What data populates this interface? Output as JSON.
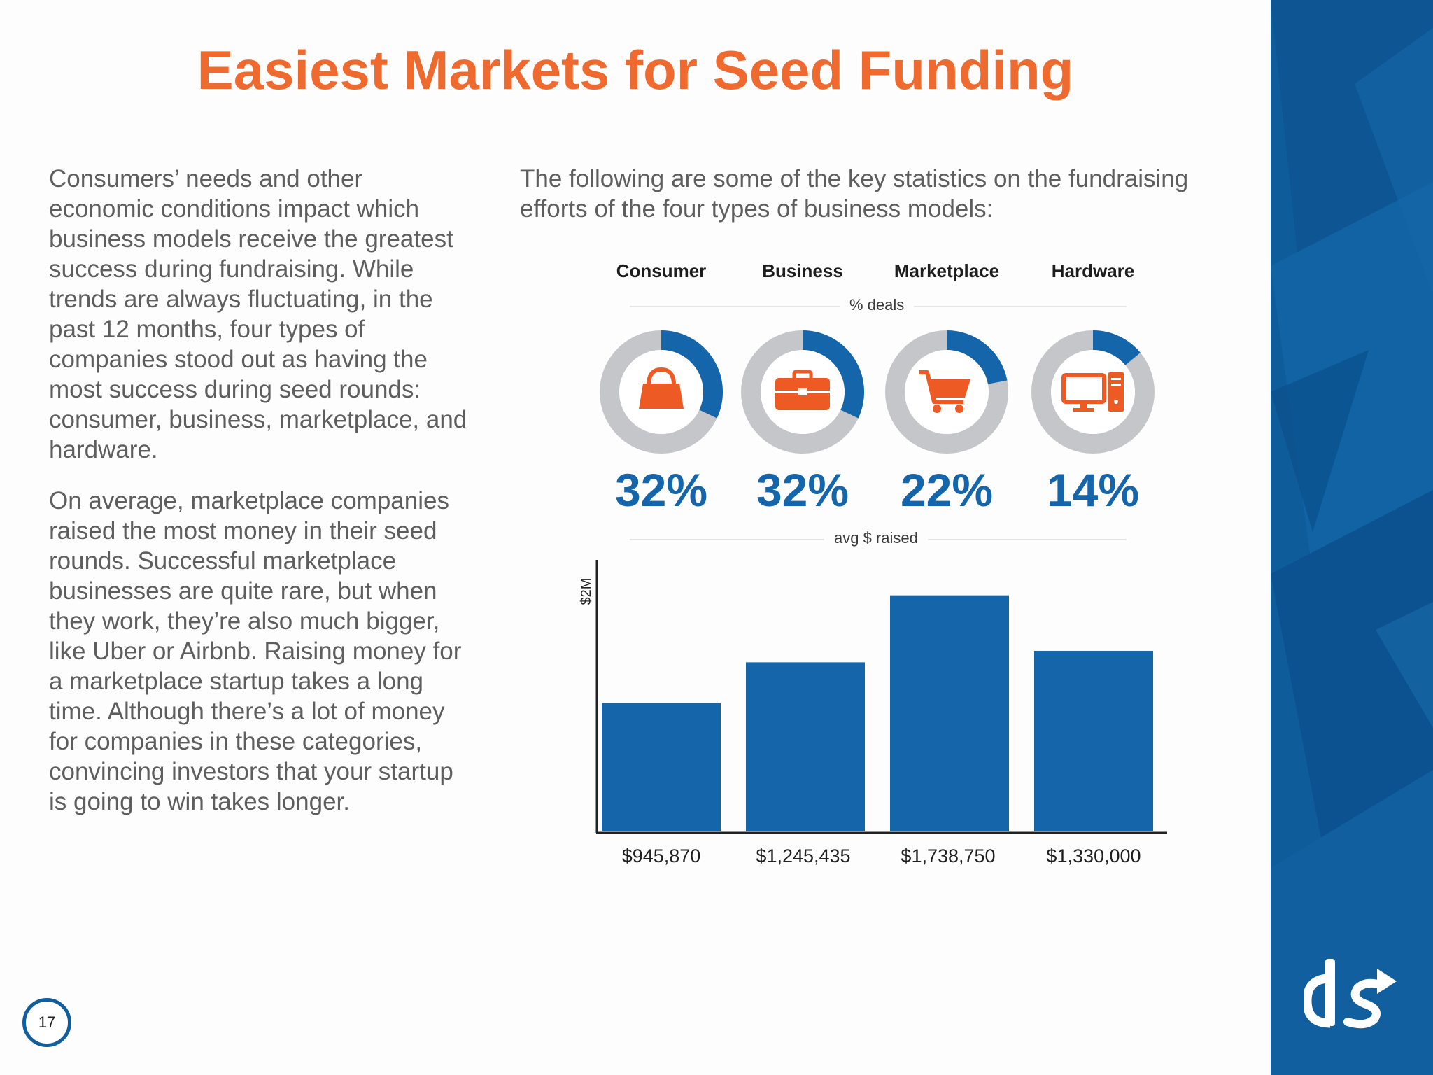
{
  "page": {
    "title": "Easiest Markets for Seed Funding",
    "page_number": "17"
  },
  "left_column": {
    "paragraph1": "Consumers’ needs and other economic conditions impact which business models receive the greatest success during fundraising. While trends are always fluctuating, in the past 12 months, four types of companies stood out as having the most success during seed rounds: consumer, business, marketplace, and hardware.",
    "paragraph2": "On average, marketplace companies raised the most money in their seed rounds. Successful marketplace businesses are quite rare, but when they work, they’re also much bigger, like Uber or Airbnb. Raising money for a marketplace startup takes a long time. Although there’s a lot of money for companies in these categories, convincing investors that your startup is going to win takes longer."
  },
  "intro": "The following are some of the key statistics on the fundraising efforts of the four types of business models:",
  "section_labels": {
    "deals": "% deals",
    "raised": "avg $ raised"
  },
  "categories": [
    {
      "name": "Consumer",
      "pct_label": "32%",
      "pct": 32,
      "icon": "shopping-bag-icon",
      "raised_label": "$945,870"
    },
    {
      "name": "Business",
      "pct_label": "32%",
      "pct": 32,
      "icon": "briefcase-icon",
      "raised_label": "$1,245,435"
    },
    {
      "name": "Marketplace",
      "pct_label": "22%",
      "pct": 22,
      "icon": "shopping-cart-icon",
      "raised_label": "$1,738,750"
    },
    {
      "name": "Hardware",
      "pct_label": "14%",
      "pct": 14,
      "icon": "desktop-computer-icon",
      "raised_label": "$1,330,000"
    }
  ],
  "colors": {
    "accent_orange": "#ee6a2f",
    "primary_blue": "#1565ab",
    "ring_gray": "#c4c6c9",
    "sidebar_blue": "#0f5c9b"
  },
  "chart_data": [
    {
      "type": "pie",
      "title": "% deals",
      "categories": [
        "Consumer",
        "Business",
        "Marketplace",
        "Hardware"
      ],
      "values": [
        32,
        32,
        22,
        14
      ]
    },
    {
      "type": "bar",
      "title": "avg $ raised",
      "categories": [
        "Consumer",
        "Business",
        "Marketplace",
        "Hardware"
      ],
      "values": [
        945870,
        1245435,
        1738750,
        1330000
      ],
      "ylabel": "$2M",
      "ylim": [
        0,
        2000000
      ],
      "grid": false
    }
  ],
  "logo_text": "ds"
}
